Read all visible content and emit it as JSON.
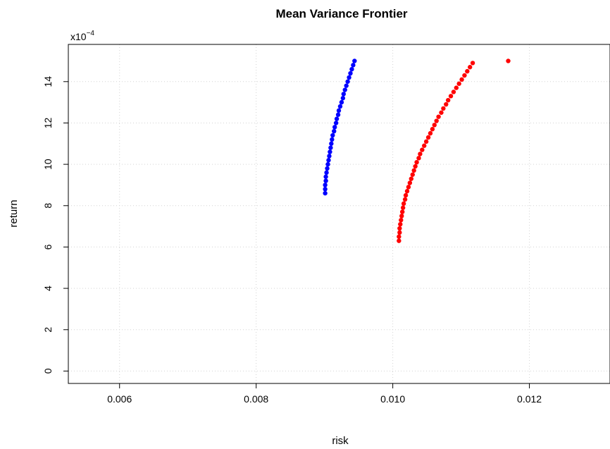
{
  "chart_data": {
    "type": "scatter",
    "title": "Mean Variance Frontier",
    "xlabel": "risk",
    "ylabel": "return",
    "y_scale_label": "x10",
    "y_scale_exp": "−4",
    "xlim": [
      0.00525,
      0.01318
    ],
    "ylim": [
      -0.6,
      15.8
    ],
    "y_multiplier": 0.0001,
    "xticks": [
      0.006,
      0.008,
      0.01,
      0.012
    ],
    "xtick_labels": [
      "0.006",
      "0.008",
      "0.010",
      "0.012"
    ],
    "yticks": [
      0,
      2,
      4,
      6,
      8,
      10,
      12,
      14
    ],
    "ytick_labels": [
      "0",
      "2",
      "4",
      "6",
      "8",
      "10",
      "12",
      "14"
    ],
    "grid": true,
    "legend": "none",
    "series": [
      {
        "color": "#0000ff",
        "points": [
          [
            0.00901,
            8.6
          ],
          [
            0.00901,
            8.8
          ],
          [
            0.00901,
            9.0
          ],
          [
            0.00902,
            9.2
          ],
          [
            0.00902,
            9.4
          ],
          [
            0.00903,
            9.6
          ],
          [
            0.00904,
            9.8
          ],
          [
            0.00905,
            10.0
          ],
          [
            0.00906,
            10.2
          ],
          [
            0.00907,
            10.4
          ],
          [
            0.00908,
            10.6
          ],
          [
            0.00909,
            10.8
          ],
          [
            0.0091,
            11.0
          ],
          [
            0.00911,
            11.2
          ],
          [
            0.00912,
            11.4
          ],
          [
            0.00914,
            11.6
          ],
          [
            0.00915,
            11.8
          ],
          [
            0.00917,
            12.0
          ],
          [
            0.00918,
            12.2
          ],
          [
            0.0092,
            12.4
          ],
          [
            0.00921,
            12.6
          ],
          [
            0.00923,
            12.8
          ],
          [
            0.00925,
            13.0
          ],
          [
            0.00927,
            13.2
          ],
          [
            0.00928,
            13.4
          ],
          [
            0.0093,
            13.6
          ],
          [
            0.00932,
            13.8
          ],
          [
            0.00934,
            14.0
          ],
          [
            0.00936,
            14.2
          ],
          [
            0.00938,
            14.4
          ],
          [
            0.0094,
            14.6
          ],
          [
            0.00942,
            14.8
          ],
          [
            0.00944,
            15.0
          ]
        ]
      },
      {
        "color": "#ff0000",
        "points": [
          [
            0.01009,
            6.3
          ],
          [
            0.01009,
            6.5
          ],
          [
            0.0101,
            6.7
          ],
          [
            0.0101,
            6.9
          ],
          [
            0.01011,
            7.1
          ],
          [
            0.01012,
            7.3
          ],
          [
            0.01013,
            7.5
          ],
          [
            0.01014,
            7.7
          ],
          [
            0.01015,
            7.9
          ],
          [
            0.01016,
            8.1
          ],
          [
            0.01018,
            8.3
          ],
          [
            0.01019,
            8.5
          ],
          [
            0.01021,
            8.7
          ],
          [
            0.01023,
            8.9
          ],
          [
            0.01025,
            9.1
          ],
          [
            0.01027,
            9.3
          ],
          [
            0.01029,
            9.5
          ],
          [
            0.01031,
            9.7
          ],
          [
            0.01033,
            9.9
          ],
          [
            0.01035,
            10.1
          ],
          [
            0.01038,
            10.3
          ],
          [
            0.0104,
            10.5
          ],
          [
            0.01043,
            10.7
          ],
          [
            0.01046,
            10.9
          ],
          [
            0.01049,
            11.1
          ],
          [
            0.01052,
            11.3
          ],
          [
            0.01055,
            11.5
          ],
          [
            0.01058,
            11.7
          ],
          [
            0.01061,
            11.9
          ],
          [
            0.01064,
            12.1
          ],
          [
            0.01067,
            12.3
          ],
          [
            0.01071,
            12.5
          ],
          [
            0.01074,
            12.7
          ],
          [
            0.01078,
            12.9
          ],
          [
            0.01081,
            13.1
          ],
          [
            0.01085,
            13.3
          ],
          [
            0.01089,
            13.5
          ],
          [
            0.01093,
            13.7
          ],
          [
            0.01097,
            13.9
          ],
          [
            0.01101,
            14.1
          ],
          [
            0.01105,
            14.3
          ],
          [
            0.01109,
            14.5
          ],
          [
            0.01113,
            14.7
          ],
          [
            0.01117,
            14.9
          ],
          [
            0.01169,
            15.0
          ]
        ]
      }
    ]
  }
}
